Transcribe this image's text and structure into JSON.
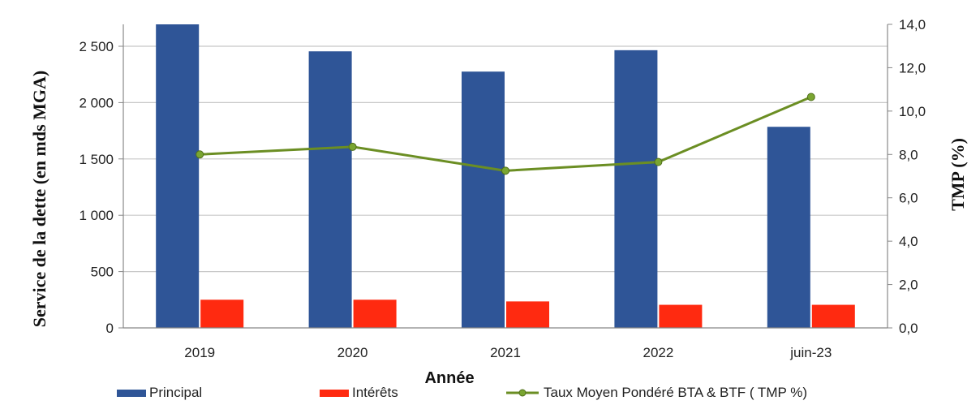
{
  "chart_data": {
    "type": "bar",
    "categories": [
      "2019",
      "2020",
      "2021",
      "2022",
      "juin-23"
    ],
    "series": [
      {
        "name": "Principal",
        "type": "bar",
        "axis": "left",
        "color": "#2f5597",
        "values": [
          2700,
          2455,
          2275,
          2465,
          1785
        ]
      },
      {
        "name": "Intérêts",
        "type": "bar",
        "axis": "left",
        "color": "#ff2a10",
        "values": [
          250,
          250,
          235,
          205,
          205
        ]
      },
      {
        "name": "Taux Moyen Pondéré BTA & BTF ( TMP %)",
        "type": "line",
        "axis": "right",
        "color": "#6b8e23",
        "values": [
          8.0,
          8.35,
          7.25,
          7.65,
          10.65
        ]
      }
    ],
    "title": "",
    "xlabel": "Année",
    "ylabel": "Service de la dette (en mds MGA)",
    "y2label": "TMP  (%)",
    "ylim": [
      0,
      2600
    ],
    "y2lim": [
      0,
      14
    ],
    "yticks": [
      "0",
      "500",
      "1 000",
      "1 500",
      "2 000",
      "2 500"
    ],
    "y2ticks": [
      "0,0",
      "2,0",
      "4,0",
      "6,0",
      "8,0",
      "10,0",
      "12,0",
      "14,0"
    ],
    "grid": true,
    "legend": "bottom"
  }
}
